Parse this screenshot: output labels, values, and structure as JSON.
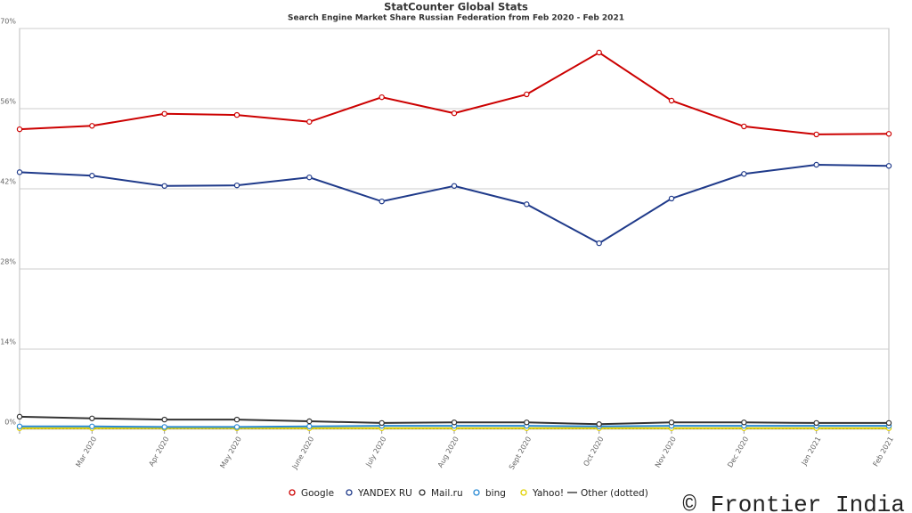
{
  "chart_data": {
    "type": "line",
    "title": "StatCounter Global Stats",
    "subtitle": "Search Engine Market Share Russian Federation from Feb 2020 - Feb 2021",
    "watermark": "© Frontier India",
    "categories": [
      null,
      "Mar 2020",
      "Apr 2020",
      "May 2020",
      "June 2020",
      "July 2020",
      "Aug 2020",
      "Sept 2020",
      "Oct 2020",
      "Nov 2020",
      "Dec 2020",
      "Jan 2021",
      "Feb 2021"
    ],
    "series": [
      {
        "name": "Google",
        "color": "#cc0000",
        "values": [
          52.4,
          53.0,
          55.1,
          54.9,
          53.7,
          58.0,
          55.2,
          58.5,
          65.8,
          57.4,
          52.9,
          51.5,
          51.6
        ]
      },
      {
        "name": "YANDEX RU",
        "color": "#1f3a8a",
        "values": [
          44.9,
          44.3,
          42.5,
          42.6,
          44.0,
          39.8,
          42.5,
          39.3,
          32.5,
          40.3,
          44.6,
          46.2,
          46.0
        ]
      },
      {
        "name": "Mail.ru",
        "color": "#333333",
        "values": [
          2.2,
          1.9,
          1.7,
          1.7,
          1.4,
          1.1,
          1.2,
          1.2,
          0.9,
          1.2,
          1.2,
          1.1,
          1.1
        ]
      },
      {
        "name": "bing",
        "color": "#2a8ad4",
        "values": [
          0.5,
          0.5,
          0.4,
          0.4,
          0.5,
          0.6,
          0.6,
          0.6,
          0.5,
          0.6,
          0.6,
          0.6,
          0.6
        ]
      },
      {
        "name": "Yahoo!",
        "color": "#e0d000",
        "values": [
          0.2,
          0.2,
          0.2,
          0.2,
          0.2,
          0.2,
          0.2,
          0.2,
          0.2,
          0.2,
          0.2,
          0.2,
          0.2
        ]
      },
      {
        "name": "Other (dotted)",
        "color": "#444444",
        "values": [
          0.1,
          0.1,
          0.1,
          0.1,
          0.1,
          0.1,
          0.1,
          0.1,
          0.1,
          0.1,
          0.1,
          0.1,
          0.1
        ]
      }
    ],
    "ylim": [
      0,
      70
    ],
    "yticks": [
      {
        "value": 0,
        "label": "0%"
      },
      {
        "value": 14,
        "label": "14%"
      },
      {
        "value": 28,
        "label": "28%"
      },
      {
        "value": 42,
        "label": "42%"
      },
      {
        "value": 56,
        "label": "56%"
      },
      {
        "value": 70,
        "label": "70%"
      }
    ],
    "grid": true
  }
}
